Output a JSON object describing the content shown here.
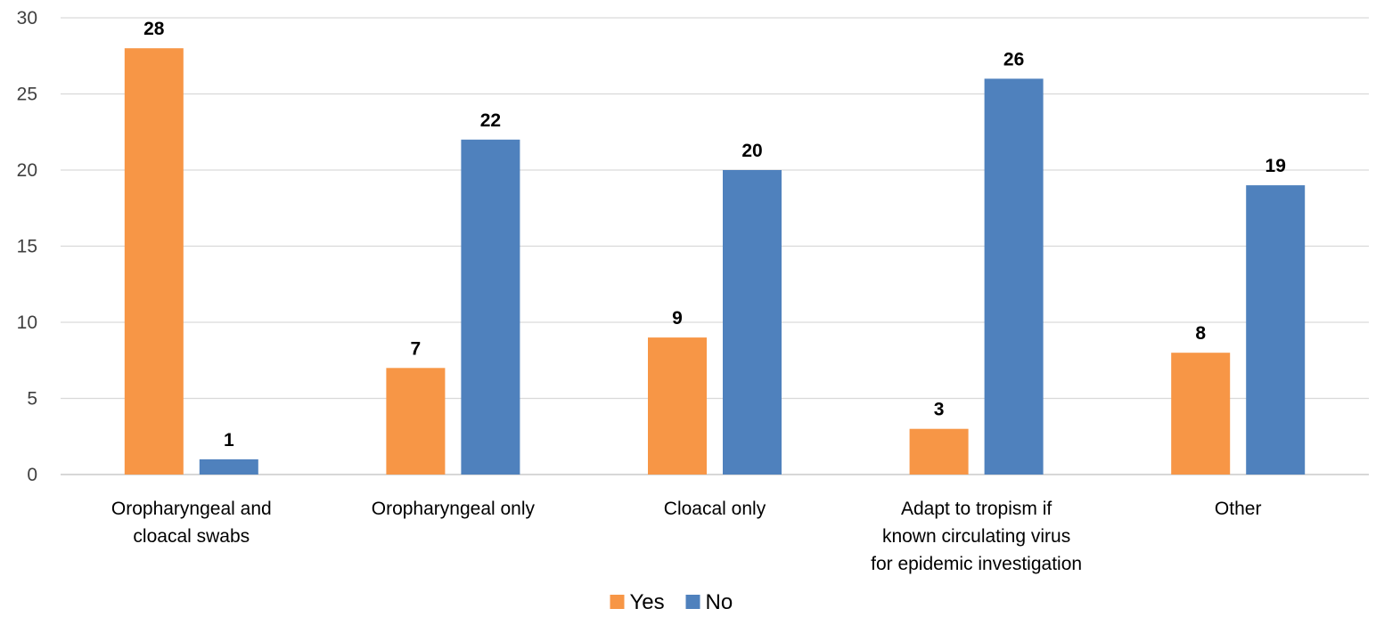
{
  "chart_data": {
    "type": "bar",
    "categories": [
      [
        "Oropharyngeal and",
        "cloacal swabs"
      ],
      [
        "Oropharyngeal only"
      ],
      [
        "Cloacal only"
      ],
      [
        "Adapt to tropism if",
        "known circulating virus",
        "for epidemic investigation"
      ],
      [
        "Other"
      ]
    ],
    "series": [
      {
        "name": "Yes",
        "color": "#F79646",
        "values": [
          28,
          7,
          9,
          3,
          8
        ]
      },
      {
        "name": "No",
        "color": "#4F81BD",
        "values": [
          1,
          22,
          20,
          26,
          19
        ]
      }
    ],
    "ylim": [
      0,
      30
    ],
    "yticks": [
      0,
      5,
      10,
      15,
      20,
      25,
      30
    ],
    "grid": true,
    "data_labels": true,
    "legend_position": "bottom"
  }
}
